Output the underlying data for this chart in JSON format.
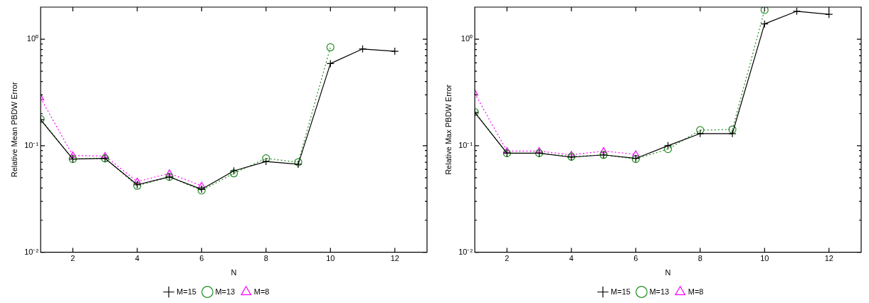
{
  "chart_data": [
    {
      "type": "line",
      "xlabel": "N",
      "ylabel": "Relative Mean PBDW Error",
      "log": "y",
      "grid": false,
      "legend": "bottom",
      "x": [
        1,
        2,
        3,
        4,
        5,
        6,
        7,
        8,
        9,
        10,
        11,
        12
      ],
      "xlim": [
        1,
        13
      ],
      "xticks": [
        2,
        4,
        6,
        8,
        10,
        12
      ],
      "ylim": [
        0.01,
        2
      ],
      "yticks": [
        {
          "value": 0.01,
          "label": "10⁻²"
        },
        {
          "value": 0.02,
          "label": null
        },
        {
          "value": 0.03,
          "label": null
        },
        {
          "value": 0.04,
          "label": null
        },
        {
          "value": 0.05,
          "label": null
        },
        {
          "value": 0.06,
          "label": null
        },
        {
          "value": 0.07,
          "label": null
        },
        {
          "value": 0.08,
          "label": null
        },
        {
          "value": 0.09,
          "label": null
        },
        {
          "value": 0.1,
          "label": "10⁻¹"
        },
        {
          "value": 0.2,
          "label": null
        },
        {
          "value": 0.3,
          "label": null
        },
        {
          "value": 0.4,
          "label": null
        },
        {
          "value": 0.5,
          "label": null
        },
        {
          "value": 0.6,
          "label": null
        },
        {
          "value": 0.7,
          "label": null
        },
        {
          "value": 0.8,
          "label": null
        },
        {
          "value": 0.9,
          "label": null
        },
        {
          "value": 1,
          "label": "10⁰"
        }
      ],
      "series": [
        {
          "name": "M=15",
          "color": "#000000",
          "marker": "cross",
          "line_style": "solid",
          "values": [
            0.175,
            0.075,
            0.076,
            0.043,
            0.051,
            0.039,
            0.058,
            0.071,
            0.067,
            0.59,
            0.81,
            0.77
          ]
        },
        {
          "name": "M=13",
          "color": "#228b22",
          "marker": "circle",
          "line_style": "dotted",
          "values": [
            0.178,
            0.075,
            0.076,
            0.042,
            0.051,
            0.038,
            0.055,
            0.076,
            0.07,
            0.84,
            null,
            null
          ]
        },
        {
          "name": "M=8",
          "color": "#ff00ff",
          "marker": "triangle",
          "line_style": "dotted",
          "values": [
            0.28,
            0.081,
            0.08,
            0.046,
            0.055,
            0.042,
            null,
            null,
            null,
            null,
            null,
            null
          ]
        }
      ]
    },
    {
      "type": "line",
      "xlabel": "N",
      "ylabel": "Relative Max PBDW Error",
      "log": "y",
      "grid": false,
      "legend": "bottom",
      "x": [
        1,
        2,
        3,
        4,
        5,
        6,
        7,
        8,
        9,
        10,
        11,
        12
      ],
      "xlim": [
        1,
        13
      ],
      "xticks": [
        2,
        4,
        6,
        8,
        10,
        12
      ],
      "ylim": [
        0.01,
        2
      ],
      "yticks": [
        {
          "value": 0.01,
          "label": "10⁻²"
        },
        {
          "value": 0.02,
          "label": null
        },
        {
          "value": 0.03,
          "label": null
        },
        {
          "value": 0.04,
          "label": null
        },
        {
          "value": 0.05,
          "label": null
        },
        {
          "value": 0.06,
          "label": null
        },
        {
          "value": 0.07,
          "label": null
        },
        {
          "value": 0.08,
          "label": null
        },
        {
          "value": 0.09,
          "label": null
        },
        {
          "value": 0.1,
          "label": "10⁻¹"
        },
        {
          "value": 0.2,
          "label": null
        },
        {
          "value": 0.3,
          "label": null
        },
        {
          "value": 0.4,
          "label": null
        },
        {
          "value": 0.5,
          "label": null
        },
        {
          "value": 0.6,
          "label": null
        },
        {
          "value": 0.7,
          "label": null
        },
        {
          "value": 0.8,
          "label": null
        },
        {
          "value": 0.9,
          "label": null
        },
        {
          "value": 1,
          "label": "10⁰"
        }
      ],
      "series": [
        {
          "name": "M=15",
          "color": "#000000",
          "marker": "cross",
          "line_style": "solid",
          "values": [
            0.205,
            0.085,
            0.085,
            0.078,
            0.082,
            0.076,
            0.1,
            0.13,
            0.13,
            1.39,
            1.83,
            1.71
          ]
        },
        {
          "name": "M=13",
          "color": "#228b22",
          "marker": "circle",
          "line_style": "dotted",
          "values": [
            0.207,
            0.085,
            0.085,
            0.079,
            0.082,
            0.075,
            0.093,
            0.14,
            0.142,
            1.88,
            null,
            null
          ]
        },
        {
          "name": "M=8",
          "color": "#ff00ff",
          "marker": "triangle",
          "line_style": "dotted",
          "values": [
            0.31,
            0.089,
            0.089,
            0.082,
            0.089,
            0.083,
            null,
            null,
            null,
            null,
            null,
            null
          ]
        }
      ]
    }
  ]
}
